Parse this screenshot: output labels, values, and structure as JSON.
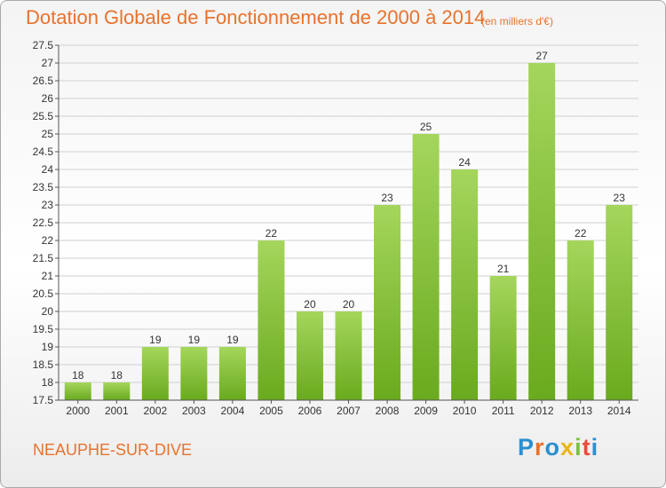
{
  "header": {
    "title": "Dotation Globale de Fonctionnement de 2000 à 2014",
    "subtitle": "(en milliers d'€)"
  },
  "footer": {
    "commune": "NEAUPHE-SUR-DIVE",
    "logo": {
      "text": "Proxiti",
      "letter_colors": [
        "#2a8fd0",
        "#e8722c",
        "#2a8fd0",
        "#e8b61c",
        "#7cc043",
        "#e84c3c",
        "#2a8fd0"
      ]
    }
  },
  "colors": {
    "title": "#e8722c",
    "bar_top": "#a4d65c",
    "bar_bottom": "#6aaa1e",
    "grid": "#d0d0d0",
    "axis": "#555555"
  },
  "chart_data": {
    "type": "bar",
    "title": "Dotation Globale de Fonctionnement de 2000 à 2014",
    "subtitle": "(en milliers d'€)",
    "categories": [
      "2000",
      "2001",
      "2002",
      "2003",
      "2004",
      "2005",
      "2006",
      "2007",
      "2008",
      "2009",
      "2010",
      "2011",
      "2012",
      "2013",
      "2014"
    ],
    "values": [
      18,
      18,
      19,
      19,
      19,
      22,
      20,
      20,
      23,
      25,
      24,
      21,
      27,
      22,
      23
    ],
    "ylim": [
      17.5,
      27.5
    ],
    "yticks": [
      "17.5",
      "18",
      "18.5",
      "19",
      "19.5",
      "20",
      "20.5",
      "21",
      "21.5",
      "22",
      "22.5",
      "23",
      "23.5",
      "24",
      "24.5",
      "25",
      "25.5",
      "26",
      "26.5",
      "27",
      "27.5"
    ],
    "xlabel": "",
    "ylabel": "",
    "grid": true,
    "legend": "none"
  }
}
